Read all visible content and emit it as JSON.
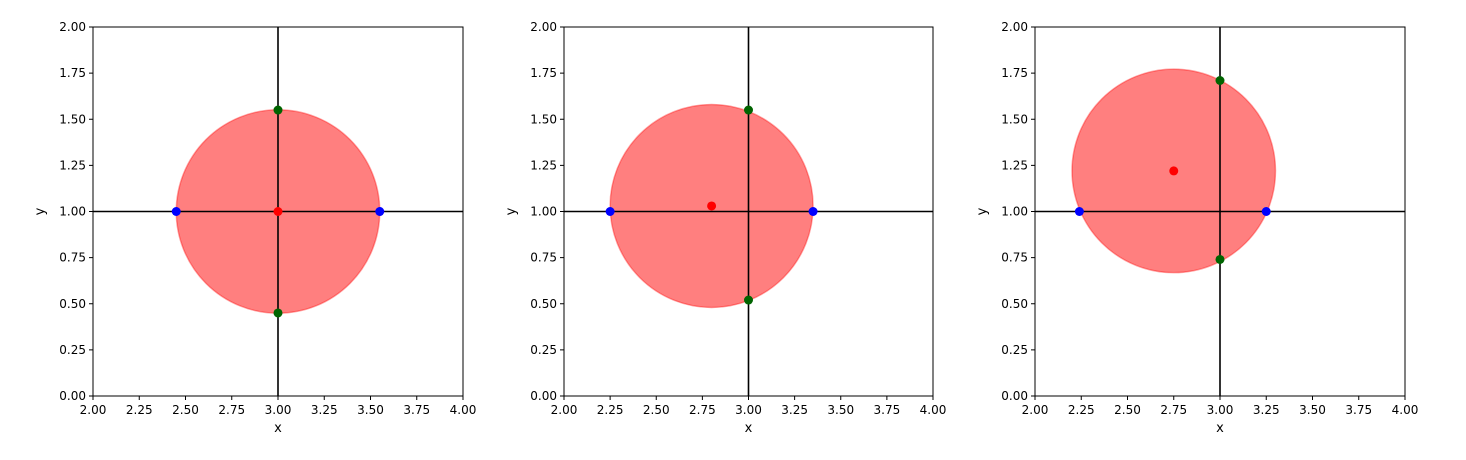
{
  "figure": {
    "colors": {
      "circle_fill": "#ff0000",
      "circle_fill_opacity": 0.5,
      "center_point": "#ff0000",
      "x_intersection_point": "#0000ff",
      "y_intersection_point": "#006400",
      "reference_lines": "#000000"
    }
  },
  "chart_data": [
    {
      "type": "scatter",
      "xlabel": "x",
      "ylabel": "y",
      "xlim": [
        2.0,
        4.0
      ],
      "ylim": [
        0.0,
        2.0
      ],
      "xticks": [
        "2.00",
        "2.25",
        "2.50",
        "2.75",
        "3.00",
        "3.25",
        "3.50",
        "3.75",
        "4.00"
      ],
      "yticks": [
        "0.00",
        "0.25",
        "0.50",
        "0.75",
        "1.00",
        "1.25",
        "1.50",
        "1.75",
        "2.00"
      ],
      "grid": false,
      "reference_lines": {
        "x": 3.0,
        "y": 1.0
      },
      "circle": {
        "center": [
          3.0,
          1.0
        ],
        "radius": 0.55
      },
      "center_point": [
        3.0,
        1.0
      ],
      "x_intersections": [
        [
          2.45,
          1.0
        ],
        [
          3.55,
          1.0
        ]
      ],
      "y_intersections": [
        [
          3.0,
          1.55
        ],
        [
          3.0,
          0.45
        ]
      ]
    },
    {
      "type": "scatter",
      "xlabel": "x",
      "ylabel": "y",
      "xlim": [
        2.0,
        4.0
      ],
      "ylim": [
        0.0,
        2.0
      ],
      "xticks": [
        "2.00",
        "2.25",
        "2.50",
        "2.75",
        "3.00",
        "3.25",
        "3.50",
        "3.75",
        "4.00"
      ],
      "yticks": [
        "0.00",
        "0.25",
        "0.50",
        "0.75",
        "1.00",
        "1.25",
        "1.50",
        "1.75",
        "2.00"
      ],
      "grid": false,
      "reference_lines": {
        "x": 3.0,
        "y": 1.0
      },
      "circle": {
        "center": [
          2.8,
          1.03
        ],
        "radius": 0.55
      },
      "center_point": [
        2.8,
        1.03
      ],
      "x_intersections": [
        [
          2.25,
          1.0
        ],
        [
          3.35,
          1.0
        ]
      ],
      "y_intersections": [
        [
          3.0,
          1.55
        ],
        [
          3.0,
          0.52
        ]
      ]
    },
    {
      "type": "scatter",
      "xlabel": "x",
      "ylabel": "y",
      "xlim": [
        2.0,
        4.0
      ],
      "ylim": [
        0.0,
        2.0
      ],
      "xticks": [
        "2.00",
        "2.25",
        "2.50",
        "2.75",
        "3.00",
        "3.25",
        "3.50",
        "3.75",
        "4.00"
      ],
      "yticks": [
        "0.00",
        "0.25",
        "0.50",
        "0.75",
        "1.00",
        "1.25",
        "1.50",
        "1.75",
        "2.00"
      ],
      "grid": false,
      "reference_lines": {
        "x": 3.0,
        "y": 1.0
      },
      "circle": {
        "center": [
          2.75,
          1.22
        ],
        "radius": 0.55
      },
      "center_point": [
        2.75,
        1.22
      ],
      "x_intersections": [
        [
          2.24,
          1.0
        ],
        [
          3.25,
          1.0
        ]
      ],
      "y_intersections": [
        [
          3.0,
          1.71
        ],
        [
          3.0,
          0.74
        ]
      ]
    }
  ]
}
